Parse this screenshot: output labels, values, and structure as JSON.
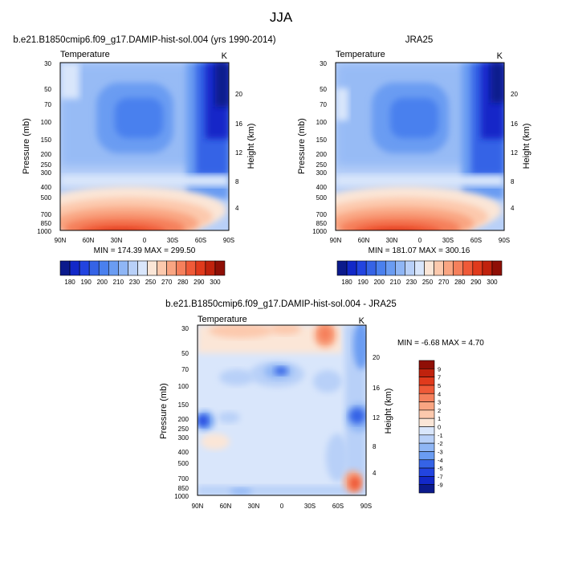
{
  "page_title": "JJA",
  "colorbar_ticks_abs": [
    "180",
    "190",
    "200",
    "210",
    "230",
    "250",
    "270",
    "280",
    "290",
    "300"
  ],
  "colorbar_ticks_diff": [
    "9",
    "7",
    "5",
    "4",
    "3",
    "2",
    "1",
    "0",
    "-1",
    "-2",
    "-3",
    "-4",
    "-5",
    "-7",
    "-9"
  ],
  "abs_colors": [
    "#0b1a8c",
    "#1228c8",
    "#2244e0",
    "#3563e6",
    "#4a80ee",
    "#6a9cf2",
    "#8fb6f5",
    "#b8d0f8",
    "#d9e6fb",
    "#fbe6d7",
    "#fcc9ad",
    "#f9a582",
    "#f5805c",
    "#ef5a38",
    "#e03a1c",
    "#c0220d",
    "#8f0f06"
  ],
  "diff_colors": [
    "#8f0f06",
    "#c0220d",
    "#e03a1c",
    "#ef5a38",
    "#f5805c",
    "#f9a582",
    "#fcc9ad",
    "#fbe6d7",
    "#d9e6fb",
    "#b8d0f8",
    "#8fb6f5",
    "#6a9cf2",
    "#3563e6",
    "#2244e0",
    "#1228c8",
    "#0b1a8c"
  ],
  "chart_data": [
    {
      "type": "heatmap",
      "title": "b.e21.B1850cmip6.f09_g17.DAMIP-hist-sol.004 (yrs 1990-2014)",
      "left_title": "Temperature",
      "unit": "K",
      "ylabel": "Pressure (mb)",
      "ylabel_right": "Height (km)",
      "x_ticks": [
        "90N",
        "60N",
        "30N",
        "0",
        "30S",
        "60S",
        "90S"
      ],
      "y_ticks": [
        "30",
        "50",
        "70",
        "100",
        "150",
        "200",
        "250",
        "300",
        "400",
        "500",
        "700",
        "850",
        "1000"
      ],
      "y_right_ticks": [
        "20",
        "16",
        "12",
        "8",
        "4"
      ],
      "min": 174.39,
      "max": 299.5,
      "min_max_text": "MIN = 174.39   MAX = 299.50"
    },
    {
      "type": "heatmap",
      "title": "JRA25",
      "left_title": "Temperature",
      "unit": "K",
      "ylabel": "Pressure (mb)",
      "ylabel_right": "Height (km)",
      "x_ticks": [
        "90N",
        "60N",
        "30N",
        "0",
        "30S",
        "60S",
        "90S"
      ],
      "y_ticks": [
        "30",
        "50",
        "70",
        "100",
        "150",
        "200",
        "250",
        "300",
        "400",
        "500",
        "700",
        "850",
        "1000"
      ],
      "y_right_ticks": [
        "20",
        "16",
        "12",
        "8",
        "4"
      ],
      "min": 181.07,
      "max": 300.16,
      "min_max_text": "MIN = 181.07   MAX = 300.16"
    },
    {
      "type": "heatmap",
      "title": "b.e21.B1850cmip6.f09_g17.DAMIP-hist-sol.004 - JRA25",
      "left_title": "Temperature",
      "unit": "K",
      "ylabel": "Pressure (mb)",
      "ylabel_right": "Height (km)",
      "x_ticks": [
        "90N",
        "60N",
        "30N",
        "0",
        "30S",
        "60S",
        "90S"
      ],
      "y_ticks": [
        "30",
        "50",
        "70",
        "100",
        "150",
        "200",
        "250",
        "300",
        "400",
        "500",
        "700",
        "850",
        "1000"
      ],
      "y_right_ticks": [
        "20",
        "16",
        "12",
        "8",
        "4"
      ],
      "min": -6.68,
      "max": 4.7,
      "min_max_text": "MIN =  -6.68   MAX =   4.70"
    }
  ]
}
